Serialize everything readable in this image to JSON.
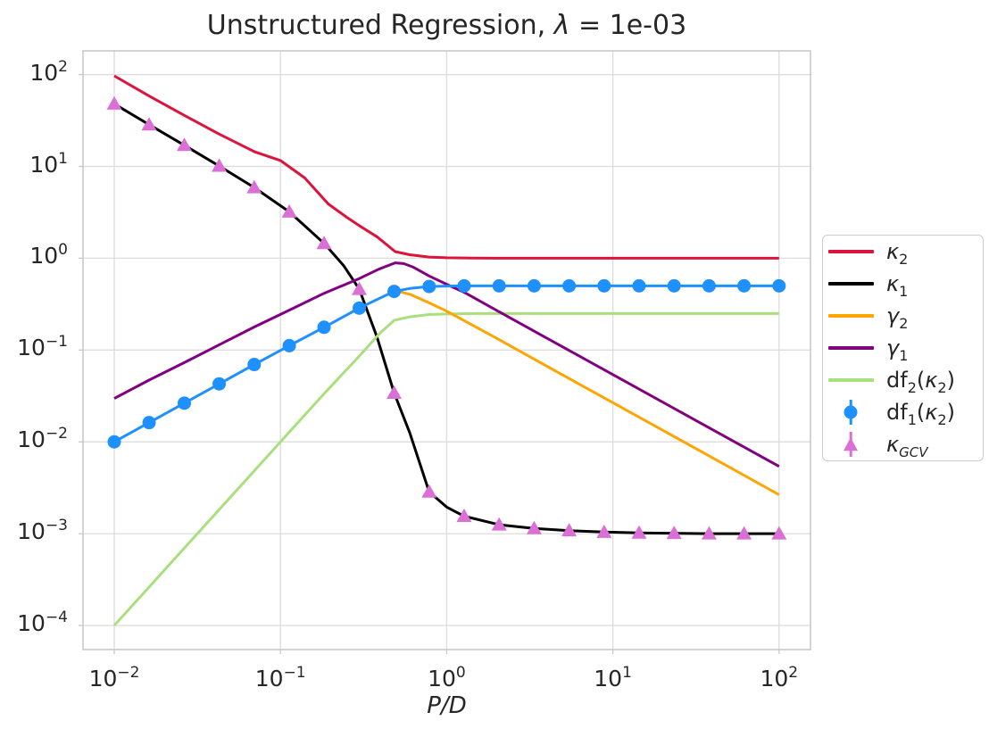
{
  "title_parts": [
    {
      "t": "Unstructured Regression, ",
      "s": ""
    },
    {
      "t": "λ",
      "s": "i"
    },
    {
      "t": " = 1e-03",
      "s": ""
    }
  ],
  "xlabel_parts": [
    {
      "t": "P/D",
      "s": "i"
    }
  ],
  "axis": {
    "text_color": "#262626",
    "grid_color": "#dcdcdc",
    "frame_color": "#c9c9c9"
  },
  "chart_data": {
    "type": "line",
    "title": "Unstructured Regression, λ = 1e-03",
    "xlabel": "P/D",
    "ylabel": "",
    "xscale": "log",
    "yscale": "log",
    "xlim": [
      0.0065,
      155
    ],
    "ylim": [
      5.5e-05,
      180
    ],
    "x_tick_exponents": [
      -2,
      -1,
      0,
      1,
      2
    ],
    "y_tick_exponents": [
      2,
      1,
      0,
      -1,
      -2,
      -3,
      -4
    ],
    "grid": true,
    "legend_position": "outside-center-right",
    "series": [
      {
        "id": "kappa2",
        "label": "κ₂",
        "type": "line",
        "color": "#dc143c",
        "points": [
          [
            0.01,
            97
          ],
          [
            0.0162,
            58.5
          ],
          [
            0.0264,
            36
          ],
          [
            0.0428,
            22.5
          ],
          [
            0.0695,
            14.5
          ],
          [
            0.1,
            11.6
          ],
          [
            0.14,
            7.5
          ],
          [
            0.194,
            3.9
          ],
          [
            0.25,
            2.8
          ],
          [
            0.3,
            2.25
          ],
          [
            0.383,
            1.7
          ],
          [
            0.49,
            1.18
          ],
          [
            0.6,
            1.09
          ],
          [
            0.785,
            1.03
          ],
          [
            1,
            1.012
          ],
          [
            1.5,
            1.002
          ],
          [
            2,
            1.0
          ],
          [
            100,
            1.0
          ]
        ]
      },
      {
        "id": "kappa1",
        "label": "κ₁",
        "type": "line",
        "color": "#000000",
        "points": [
          [
            0.01,
            48
          ],
          [
            0.0162,
            28.5
          ],
          [
            0.0264,
            17
          ],
          [
            0.0428,
            10.1
          ],
          [
            0.0695,
            5.9
          ],
          [
            0.113,
            3.2
          ],
          [
            0.183,
            1.45
          ],
          [
            0.24,
            0.83
          ],
          [
            0.298,
            0.46
          ],
          [
            0.38,
            0.14
          ],
          [
            0.483,
            0.034
          ],
          [
            0.6,
            0.0125
          ],
          [
            0.785,
            0.00285
          ],
          [
            1,
            0.00195
          ],
          [
            1.274,
            0.00155
          ],
          [
            2.069,
            0.00125
          ],
          [
            3.36,
            0.00114
          ],
          [
            5.456,
            0.00108
          ],
          [
            8.859,
            0.00104
          ],
          [
            14.38,
            0.00102
          ],
          [
            23.36,
            0.00101
          ],
          [
            37.93,
            0.001
          ],
          [
            61.58,
            0.001
          ],
          [
            100,
            0.001
          ]
        ]
      },
      {
        "id": "df2",
        "label": "df₂(κ₂)",
        "type": "line",
        "color": "#aadf7e",
        "points": [
          [
            0.01,
            0.0001
          ],
          [
            0.0162,
            0.000262
          ],
          [
            0.0264,
            0.000697
          ],
          [
            0.0428,
            0.00183
          ],
          [
            0.0695,
            0.00483
          ],
          [
            0.113,
            0.01277
          ],
          [
            0.183,
            0.0335
          ],
          [
            0.298,
            0.0858
          ],
          [
            0.4,
            0.155
          ],
          [
            0.483,
            0.21
          ],
          [
            0.6,
            0.23
          ],
          [
            0.785,
            0.2435
          ],
          [
            1,
            0.247
          ],
          [
            1.5,
            0.2495
          ],
          [
            2,
            0.25
          ],
          [
            100,
            0.25
          ]
        ]
      },
      {
        "id": "gamma2",
        "label": "γ₂",
        "type": "line",
        "color": "#ffa500",
        "points": [
          [
            0.45,
            0.46
          ],
          [
            0.6,
            0.405
          ],
          [
            0.785,
            0.327
          ],
          [
            1,
            0.265
          ],
          [
            2,
            0.134
          ],
          [
            5,
            0.0535
          ],
          [
            10,
            0.0267
          ],
          [
            30,
            0.0089
          ],
          [
            100,
            0.00265
          ]
        ]
      },
      {
        "id": "gamma1",
        "label": "γ₁",
        "type": "line",
        "color": "#800080",
        "points": [
          [
            0.01,
            0.0297
          ],
          [
            0.0162,
            0.047
          ],
          [
            0.0264,
            0.073
          ],
          [
            0.0428,
            0.114
          ],
          [
            0.0695,
            0.178
          ],
          [
            0.113,
            0.272
          ],
          [
            0.183,
            0.415
          ],
          [
            0.298,
            0.6
          ],
          [
            0.39,
            0.76
          ],
          [
            0.49,
            0.89
          ],
          [
            0.55,
            0.875
          ],
          [
            0.63,
            0.8
          ],
          [
            0.785,
            0.64
          ],
          [
            1,
            0.52
          ],
          [
            1.274,
            0.425
          ],
          [
            2,
            0.27
          ],
          [
            4,
            0.135
          ],
          [
            10,
            0.054
          ],
          [
            30,
            0.018
          ],
          [
            100,
            0.0054
          ]
        ]
      },
      {
        "id": "df1",
        "label": "df₁(κ₂)",
        "type": "line+markers",
        "marker": "circle",
        "color": "#1e90ff",
        "points": [
          [
            0.01,
            0.01
          ],
          [
            0.0695,
            0.0695
          ],
          [
            0.113,
            0.1115
          ],
          [
            0.183,
            0.177
          ],
          [
            0.298,
            0.286
          ],
          [
            0.4,
            0.37
          ],
          [
            0.483,
            0.435
          ],
          [
            0.6,
            0.468
          ],
          [
            0.785,
            0.492
          ],
          [
            1,
            0.498
          ],
          [
            1.5,
            0.5
          ],
          [
            100,
            0.5
          ]
        ],
        "marker_points": [
          [
            0.01,
            0.01
          ],
          [
            0.0162,
            0.0162
          ],
          [
            0.0264,
            0.0264
          ],
          [
            0.0428,
            0.0428
          ],
          [
            0.0695,
            0.0695
          ],
          [
            0.113,
            0.1115
          ],
          [
            0.183,
            0.177
          ],
          [
            0.298,
            0.286
          ],
          [
            0.483,
            0.435
          ],
          [
            0.785,
            0.492
          ],
          [
            1.274,
            0.4995
          ],
          [
            2.069,
            0.5
          ],
          [
            3.36,
            0.5
          ],
          [
            5.456,
            0.5
          ],
          [
            8.859,
            0.5
          ],
          [
            14.38,
            0.5
          ],
          [
            23.36,
            0.5
          ],
          [
            37.93,
            0.5
          ],
          [
            61.58,
            0.5
          ],
          [
            100,
            0.5
          ]
        ]
      },
      {
        "id": "kappa_gcv",
        "label": "κ_GCV",
        "type": "markers",
        "marker": "triangle",
        "color": "#da70d6",
        "marker_points": [
          [
            0.01,
            48
          ],
          [
            0.0162,
            28.5
          ],
          [
            0.0264,
            17
          ],
          [
            0.0428,
            10.1
          ],
          [
            0.0695,
            5.9
          ],
          [
            0.113,
            3.2
          ],
          [
            0.183,
            1.45
          ],
          [
            0.298,
            0.46
          ],
          [
            0.483,
            0.034
          ],
          [
            0.785,
            0.00285
          ],
          [
            1.274,
            0.00155
          ],
          [
            2.069,
            0.00125
          ],
          [
            3.36,
            0.00114
          ],
          [
            5.456,
            0.00108
          ],
          [
            8.859,
            0.00104
          ],
          [
            14.38,
            0.00102
          ],
          [
            23.36,
            0.00101
          ],
          [
            37.93,
            0.001
          ],
          [
            61.58,
            0.001
          ],
          [
            100,
            0.001
          ]
        ]
      }
    ],
    "draw_order": [
      "kappa2",
      "kappa1",
      "df2",
      "gamma2",
      "gamma1",
      "df1",
      "kappa_gcv"
    ]
  },
  "legend": {
    "items": [
      {
        "series": "kappa2",
        "glyph": "line",
        "color": "#dc143c",
        "parts": [
          {
            "t": "κ",
            "s": "i"
          },
          {
            "t": "2",
            "s": "sub"
          }
        ]
      },
      {
        "series": "kappa1",
        "glyph": "line",
        "color": "#000000",
        "parts": [
          {
            "t": "κ",
            "s": "i"
          },
          {
            "t": "1",
            "s": "sub"
          }
        ]
      },
      {
        "series": "gamma2",
        "glyph": "line",
        "color": "#ffa500",
        "parts": [
          {
            "t": "γ",
            "s": "i"
          },
          {
            "t": "2",
            "s": "sub"
          }
        ]
      },
      {
        "series": "gamma1",
        "glyph": "line",
        "color": "#800080",
        "parts": [
          {
            "t": "γ",
            "s": "i"
          },
          {
            "t": "1",
            "s": "sub"
          }
        ]
      },
      {
        "series": "df2",
        "glyph": "line",
        "color": "#aadf7e",
        "parts": [
          {
            "t": "df",
            "s": ""
          },
          {
            "t": "2",
            "s": "sub"
          },
          {
            "t": "(",
            "s": ""
          },
          {
            "t": "κ",
            "s": "i"
          },
          {
            "t": "2",
            "s": "sub"
          },
          {
            "t": ")",
            "s": ""
          }
        ]
      },
      {
        "series": "df1",
        "glyph": "circle",
        "color": "#1e90ff",
        "parts": [
          {
            "t": "df",
            "s": ""
          },
          {
            "t": "1",
            "s": "sub"
          },
          {
            "t": "(",
            "s": ""
          },
          {
            "t": "κ",
            "s": "i"
          },
          {
            "t": "2",
            "s": "sub"
          },
          {
            "t": ")",
            "s": ""
          }
        ]
      },
      {
        "series": "kappa_gcv",
        "glyph": "triangle",
        "color": "#da70d6",
        "parts": [
          {
            "t": "κ",
            "s": "i"
          },
          {
            "t": "GCV",
            "s": "isub"
          }
        ]
      }
    ]
  }
}
